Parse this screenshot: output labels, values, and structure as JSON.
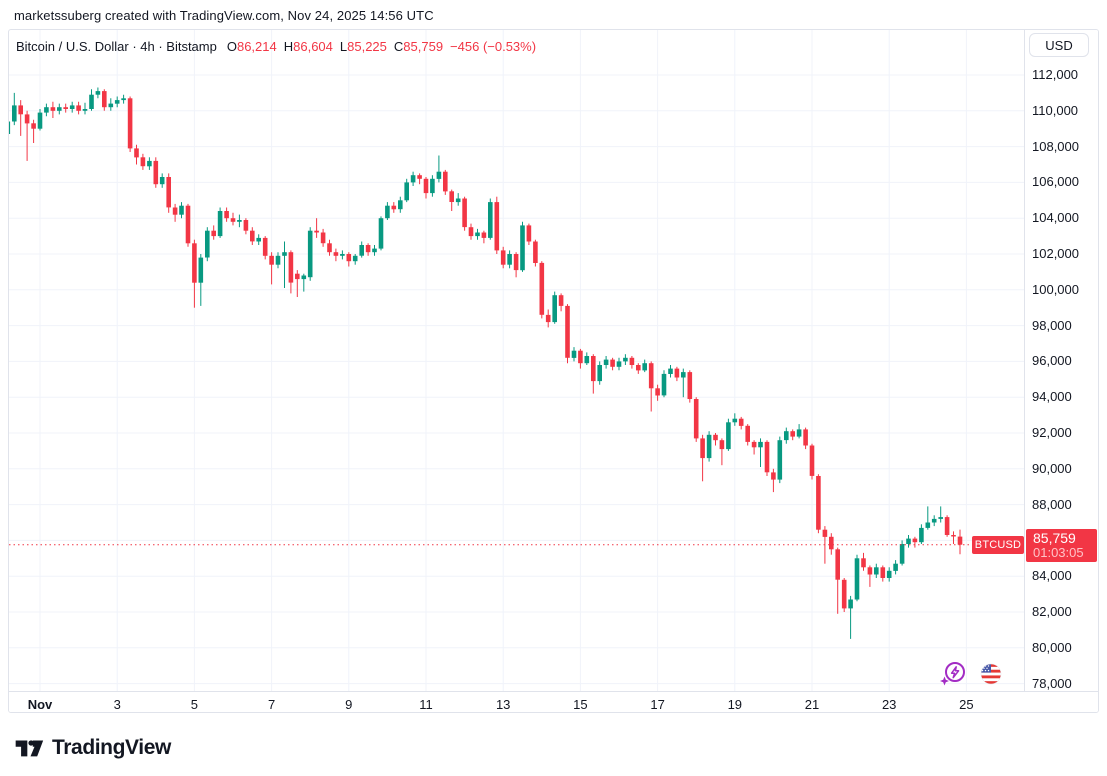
{
  "attribution": "marketssuberg created with TradingView.com, Nov 24, 2025 14:56 UTC",
  "legend": {
    "symbol_title": "Bitcoin / U.S. Dollar · 4h · Bitstamp",
    "ohlc": [
      {
        "k": "O",
        "v": "86,214"
      },
      {
        "k": "H",
        "v": "86,604"
      },
      {
        "k": "L",
        "v": "85,225"
      },
      {
        "k": "C",
        "v": "85,759"
      }
    ],
    "change": "−456 (−0.53%)"
  },
  "price_axis": {
    "currency_button": "USD"
  },
  "price_label": {
    "symbol": "BTCUSD",
    "price": "85,759",
    "countdown": "01:03:05"
  },
  "footer": {
    "brand": "TradingView"
  },
  "icons": {
    "boost": "spark-lightning-icon",
    "flag": "us-flag-icon"
  },
  "colors": {
    "up": "#089981",
    "down": "#f23645",
    "grid": "#f0f3fa",
    "axis_border": "#e0e3eb",
    "text": "#131722",
    "countdown_text": "#ffc2c7",
    "accent_purple": "#a32cc4",
    "flag_blue": "#4758a8",
    "flag_red": "#e53935"
  },
  "chart_data": {
    "type": "candlestick",
    "title": "Bitcoin / U.S. Dollar",
    "symbol": "BTCUSD",
    "interval": "4h",
    "exchange": "Bitstamp",
    "current_candle": {
      "open": 86214,
      "high": 86604,
      "low": 85225,
      "close": 85759,
      "change": -456,
      "change_pct": -0.53
    },
    "current_price": 85759,
    "countdown": "01:03:05",
    "ylim": [
      77300,
      113600
    ],
    "grid": true,
    "y_ticks": [
      {
        "v": 112000,
        "label": "112,000"
      },
      {
        "v": 110000,
        "label": "110,000"
      },
      {
        "v": 108000,
        "label": "108,000"
      },
      {
        "v": 106000,
        "label": "106,000"
      },
      {
        "v": 104000,
        "label": "104,000"
      },
      {
        "v": 102000,
        "label": "102,000"
      },
      {
        "v": 100000,
        "label": "100,000"
      },
      {
        "v": 98000,
        "label": "98,000"
      },
      {
        "v": 96000,
        "label": "96,000"
      },
      {
        "v": 94000,
        "label": "94,000"
      },
      {
        "v": 92000,
        "label": "92,000"
      },
      {
        "v": 90000,
        "label": "90,000"
      },
      {
        "v": 88000,
        "label": "88,000"
      },
      {
        "v": 86000,
        "label": "86,000"
      },
      {
        "v": 84000,
        "label": "84,000"
      },
      {
        "v": 82000,
        "label": "82,000"
      },
      {
        "v": 80000,
        "label": "80,000"
      },
      {
        "v": 78000,
        "label": "78,000"
      }
    ],
    "x_ticks": [
      {
        "day": 1,
        "label": "Nov",
        "bold": true
      },
      {
        "day": 3,
        "label": "3"
      },
      {
        "day": 5,
        "label": "5"
      },
      {
        "day": 7,
        "label": "7"
      },
      {
        "day": 9,
        "label": "9"
      },
      {
        "day": 11,
        "label": "11"
      },
      {
        "day": 13,
        "label": "13"
      },
      {
        "day": 15,
        "label": "15"
      },
      {
        "day": 17,
        "label": "17"
      },
      {
        "day": 19,
        "label": "19"
      },
      {
        "day": 21,
        "label": "21"
      },
      {
        "day": 23,
        "label": "23"
      },
      {
        "day": 25,
        "label": "25"
      }
    ],
    "candles_per_day": 6,
    "nov1_index": 5,
    "candles": [
      [
        108700,
        109600,
        108500,
        109400
      ],
      [
        109400,
        111000,
        109200,
        110300
      ],
      [
        110300,
        110600,
        108600,
        109800
      ],
      [
        109800,
        110000,
        107200,
        109300
      ],
      [
        109300,
        109500,
        108200,
        109000
      ],
      [
        109000,
        110100,
        108900,
        109900
      ],
      [
        109900,
        110400,
        109700,
        110200
      ],
      [
        110200,
        110500,
        109600,
        110000
      ],
      [
        110000,
        110400,
        109800,
        110200
      ],
      [
        110200,
        110400,
        109900,
        110100
      ],
      [
        110100,
        110500,
        109900,
        110300
      ],
      [
        110300,
        110500,
        109800,
        110000
      ],
      [
        110000,
        110450,
        109800,
        110100
      ],
      [
        110100,
        111200,
        110000,
        110900
      ],
      [
        110900,
        111300,
        110700,
        111100
      ],
      [
        111100,
        111200,
        110000,
        110200
      ],
      [
        110200,
        110700,
        110000,
        110400
      ],
      [
        110400,
        110800,
        110200,
        110600
      ],
      [
        110600,
        110900,
        110400,
        110700
      ],
      [
        110700,
        110800,
        107700,
        107900
      ],
      [
        107900,
        108100,
        107000,
        107400
      ],
      [
        107400,
        107600,
        106700,
        106900
      ],
      [
        106900,
        107400,
        106700,
        107200
      ],
      [
        107200,
        107400,
        105700,
        105900
      ],
      [
        105900,
        106500,
        105700,
        106300
      ],
      [
        106300,
        106500,
        104300,
        104600
      ],
      [
        104600,
        104800,
        103800,
        104200
      ],
      [
        104200,
        104900,
        104000,
        104700
      ],
      [
        104700,
        104800,
        102400,
        102600
      ],
      [
        102600,
        102800,
        99000,
        100400
      ],
      [
        100400,
        102000,
        99100,
        101800
      ],
      [
        101800,
        103500,
        101600,
        103300
      ],
      [
        103300,
        103600,
        102800,
        103000
      ],
      [
        103000,
        104600,
        102900,
        104400
      ],
      [
        104400,
        104600,
        103800,
        104000
      ],
      [
        104000,
        104300,
        103600,
        103800
      ],
      [
        103800,
        104200,
        103500,
        103900
      ],
      [
        103900,
        104000,
        103100,
        103300
      ],
      [
        103300,
        103500,
        102500,
        102700
      ],
      [
        102700,
        103100,
        102500,
        102900
      ],
      [
        102900,
        103000,
        101700,
        101900
      ],
      [
        101900,
        102100,
        100300,
        101400
      ],
      [
        101400,
        102100,
        101200,
        101900
      ],
      [
        101900,
        102700,
        100100,
        102100
      ],
      [
        102100,
        102200,
        99800,
        100400
      ],
      [
        100900,
        101100,
        99600,
        100600
      ],
      [
        100600,
        100900,
        99900,
        100800
      ],
      [
        100700,
        103500,
        100500,
        103300
      ],
      [
        103300,
        104000,
        102900,
        103200
      ],
      [
        103200,
        103400,
        102400,
        102600
      ],
      [
        102600,
        102800,
        101900,
        102100
      ],
      [
        102100,
        102300,
        101600,
        101900
      ],
      [
        101900,
        102200,
        101700,
        102000
      ],
      [
        102000,
        102100,
        101300,
        101600
      ],
      [
        101600,
        102000,
        101400,
        101900
      ],
      [
        101900,
        102700,
        101800,
        102500
      ],
      [
        102500,
        102600,
        101900,
        102100
      ],
      [
        102100,
        102500,
        101900,
        102300
      ],
      [
        102300,
        104100,
        102200,
        104000
      ],
      [
        104000,
        104900,
        103900,
        104700
      ],
      [
        104700,
        104900,
        104300,
        104500
      ],
      [
        104500,
        105200,
        104300,
        105000
      ],
      [
        105000,
        106200,
        104900,
        106000
      ],
      [
        106000,
        106600,
        105800,
        106400
      ],
      [
        106400,
        106500,
        105900,
        106200
      ],
      [
        106200,
        106300,
        105100,
        105400
      ],
      [
        105400,
        106400,
        105200,
        106200
      ],
      [
        106200,
        107500,
        106000,
        106600
      ],
      [
        106600,
        106700,
        105300,
        105500
      ],
      [
        105500,
        105600,
        104400,
        104900
      ],
      [
        104900,
        105400,
        104700,
        105100
      ],
      [
        105100,
        105200,
        103300,
        103500
      ],
      [
        103500,
        103700,
        102800,
        103000
      ],
      [
        103000,
        103400,
        102800,
        103200
      ],
      [
        103200,
        103300,
        102600,
        102900
      ],
      [
        102900,
        105100,
        102800,
        104900
      ],
      [
        104900,
        105200,
        102000,
        102200
      ],
      [
        102200,
        102400,
        101200,
        101400
      ],
      [
        101400,
        102200,
        101200,
        102000
      ],
      [
        102000,
        102100,
        100700,
        101100
      ],
      [
        101100,
        103800,
        101000,
        103600
      ],
      [
        103600,
        103700,
        102500,
        102700
      ],
      [
        102700,
        102800,
        101300,
        101500
      ],
      [
        101500,
        101600,
        98400,
        98600
      ],
      [
        98600,
        98900,
        97900,
        98200
      ],
      [
        98200,
        99900,
        98100,
        99700
      ],
      [
        99700,
        99800,
        98800,
        99100
      ],
      [
        99100,
        99200,
        95900,
        96200
      ],
      [
        96200,
        96800,
        96000,
        96600
      ],
      [
        96600,
        96700,
        95600,
        95900
      ],
      [
        95900,
        96500,
        95800,
        96300
      ],
      [
        96300,
        96400,
        94200,
        94900
      ],
      [
        94900,
        96000,
        94700,
        95800
      ],
      [
        95800,
        96300,
        95600,
        96100
      ],
      [
        96100,
        96200,
        95500,
        95700
      ],
      [
        95700,
        96200,
        95500,
        96000
      ],
      [
        96000,
        96400,
        95800,
        96200
      ],
      [
        96200,
        96300,
        95600,
        95800
      ],
      [
        95800,
        95900,
        95300,
        95500
      ],
      [
        95500,
        96100,
        95400,
        95900
      ],
      [
        95900,
        96000,
        93200,
        94500
      ],
      [
        94500,
        94700,
        93800,
        94100
      ],
      [
        94100,
        95500,
        94000,
        95300
      ],
      [
        95300,
        95800,
        95100,
        95600
      ],
      [
        95600,
        95700,
        94900,
        95100
      ],
      [
        95100,
        95600,
        94000,
        95400
      ],
      [
        95400,
        95500,
        93700,
        93900
      ],
      [
        93900,
        94000,
        91500,
        91700
      ],
      [
        91700,
        91900,
        89300,
        90600
      ],
      [
        90600,
        92100,
        90400,
        91900
      ],
      [
        91900,
        92000,
        91300,
        91600
      ],
      [
        91600,
        91700,
        90200,
        91100
      ],
      [
        91100,
        92800,
        91000,
        92600
      ],
      [
        92600,
        93100,
        92400,
        92800
      ],
      [
        92800,
        92900,
        92200,
        92400
      ],
      [
        92400,
        92500,
        91300,
        91500
      ],
      [
        91500,
        91600,
        90800,
        91200
      ],
      [
        91200,
        91700,
        90100,
        91500
      ],
      [
        91500,
        91600,
        89600,
        89800
      ],
      [
        89800,
        90000,
        88700,
        89400
      ],
      [
        89400,
        91800,
        89200,
        91600
      ],
      [
        91600,
        92300,
        91400,
        92100
      ],
      [
        92100,
        92200,
        91600,
        91800
      ],
      [
        91800,
        92500,
        91700,
        92200
      ],
      [
        92200,
        92300,
        91100,
        91300
      ],
      [
        91300,
        91400,
        89400,
        89600
      ],
      [
        89600,
        89700,
        86400,
        86600
      ],
      [
        86600,
        86800,
        84700,
        86200
      ],
      [
        86200,
        86400,
        85200,
        85500
      ],
      [
        85500,
        85600,
        81900,
        83800
      ],
      [
        83800,
        83900,
        82000,
        82200
      ],
      [
        82200,
        82900,
        80500,
        82700
      ],
      [
        82700,
        85200,
        82600,
        85000
      ],
      [
        85000,
        85300,
        84300,
        84500
      ],
      [
        84500,
        84600,
        83400,
        84100
      ],
      [
        84100,
        84700,
        83900,
        84500
      ],
      [
        84500,
        84600,
        83700,
        83900
      ],
      [
        83900,
        84500,
        83700,
        84300
      ],
      [
        84300,
        84900,
        84100,
        84700
      ],
      [
        84700,
        86000,
        84600,
        85800
      ],
      [
        85800,
        86300,
        85600,
        86100
      ],
      [
        86100,
        86200,
        85600,
        85900
      ],
      [
        85900,
        86900,
        85800,
        86700
      ],
      [
        86700,
        87900,
        86600,
        87000
      ],
      [
        87000,
        87400,
        86800,
        87200
      ],
      [
        87200,
        87900,
        87000,
        87300
      ],
      [
        87300,
        87400,
        86200,
        86300
      ],
      [
        86300,
        86500,
        85800,
        86214
      ],
      [
        86214,
        86604,
        85225,
        85759
      ]
    ]
  }
}
